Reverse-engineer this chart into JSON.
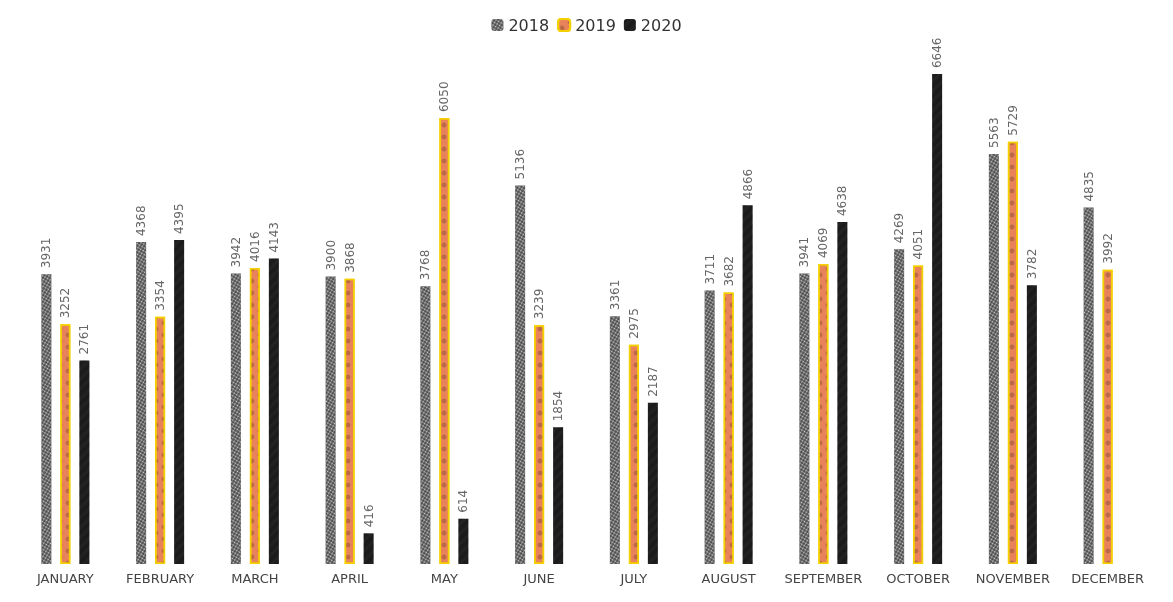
{
  "chart_data": {
    "type": "bar",
    "categories": [
      "JANUARY",
      "FEBRUARY",
      "MARCH",
      "APRIL",
      "MAY",
      "JUNE",
      "JULY",
      "AUGUST",
      "SEPTEMBER",
      "OCTOBER",
      "NOVEMBER",
      "DECEMBER"
    ],
    "series": [
      {
        "name": "2018",
        "color": "#4a4a4a",
        "values": [
          3931,
          4368,
          3942,
          3900,
          3768,
          5136,
          3361,
          3711,
          3941,
          4269,
          5563,
          4835
        ]
      },
      {
        "name": "2019",
        "color": "#e8825a",
        "values": [
          3252,
          3354,
          4016,
          3868,
          6050,
          3239,
          2975,
          3682,
          4069,
          4051,
          5729,
          3992
        ]
      },
      {
        "name": "2020",
        "color": "#222222",
        "values": [
          2761,
          4395,
          4143,
          416,
          614,
          1854,
          2187,
          4866,
          4638,
          6646,
          3782,
          null
        ]
      }
    ],
    "data_labels": true,
    "legend": "top"
  }
}
